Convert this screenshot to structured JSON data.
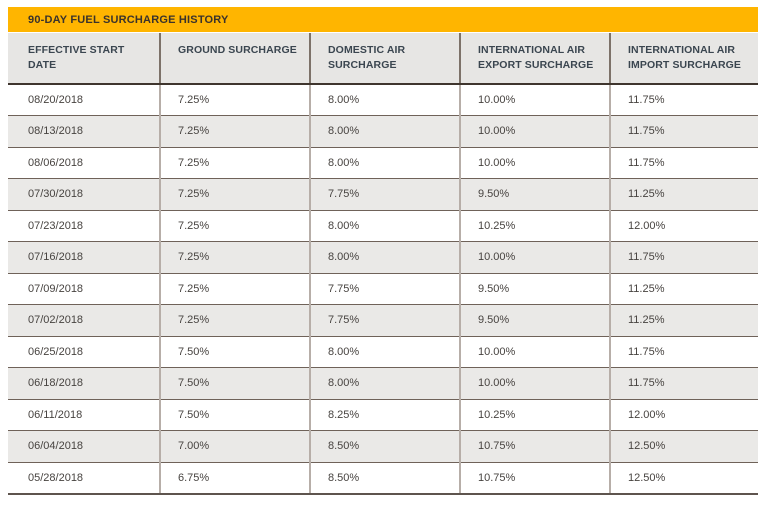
{
  "chart_data": {
    "type": "table",
    "title": "90-DAY FUEL SURCHARGE HISTORY",
    "columns": [
      "EFFECTIVE START DATE",
      "GROUND SURCHARGE",
      "DOMESTIC AIR SURCHARGE",
      "INTERNATIONAL AIR EXPORT SURCHARGE",
      "INTERNATIONAL AIR IMPORT SURCHARGE"
    ],
    "rows": [
      [
        "08/20/2018",
        "7.25%",
        "8.00%",
        "10.00%",
        "11.75%"
      ],
      [
        "08/13/2018",
        "7.25%",
        "8.00%",
        "10.00%",
        "11.75%"
      ],
      [
        "08/06/2018",
        "7.25%",
        "8.00%",
        "10.00%",
        "11.75%"
      ],
      [
        "07/30/2018",
        "7.25%",
        "7.75%",
        "9.50%",
        "11.25%"
      ],
      [
        "07/23/2018",
        "7.25%",
        "8.00%",
        "10.25%",
        "12.00%"
      ],
      [
        "07/16/2018",
        "7.25%",
        "8.00%",
        "10.00%",
        "11.75%"
      ],
      [
        "07/09/2018",
        "7.25%",
        "7.75%",
        "9.50%",
        "11.25%"
      ],
      [
        "07/02/2018",
        "7.25%",
        "7.75%",
        "9.50%",
        "11.25%"
      ],
      [
        "06/25/2018",
        "7.50%",
        "8.00%",
        "10.00%",
        "11.75%"
      ],
      [
        "06/18/2018",
        "7.50%",
        "8.00%",
        "10.00%",
        "11.75%"
      ],
      [
        "06/11/2018",
        "7.50%",
        "8.25%",
        "10.25%",
        "12.00%"
      ],
      [
        "06/04/2018",
        "7.00%",
        "8.50%",
        "10.75%",
        "12.50%"
      ],
      [
        "05/28/2018",
        "6.75%",
        "8.50%",
        "10.75%",
        "12.50%"
      ]
    ],
    "layout": {
      "grid": true,
      "row_striping": "alternating",
      "header_position": "top"
    }
  },
  "colors": {
    "accent_gold": "#FFB500",
    "header_bg": "#E7E6E4",
    "row_stripe": "#EAE9E7",
    "header_border": "#3F352E",
    "row_border": "#6F6259",
    "bottom_border": "#5E544E",
    "column_divider": "#B7AEA8",
    "header_divider": "#7D7269",
    "title_text": "#3A332C",
    "header_text": "#3B4650",
    "cell_text": "#474340"
  }
}
